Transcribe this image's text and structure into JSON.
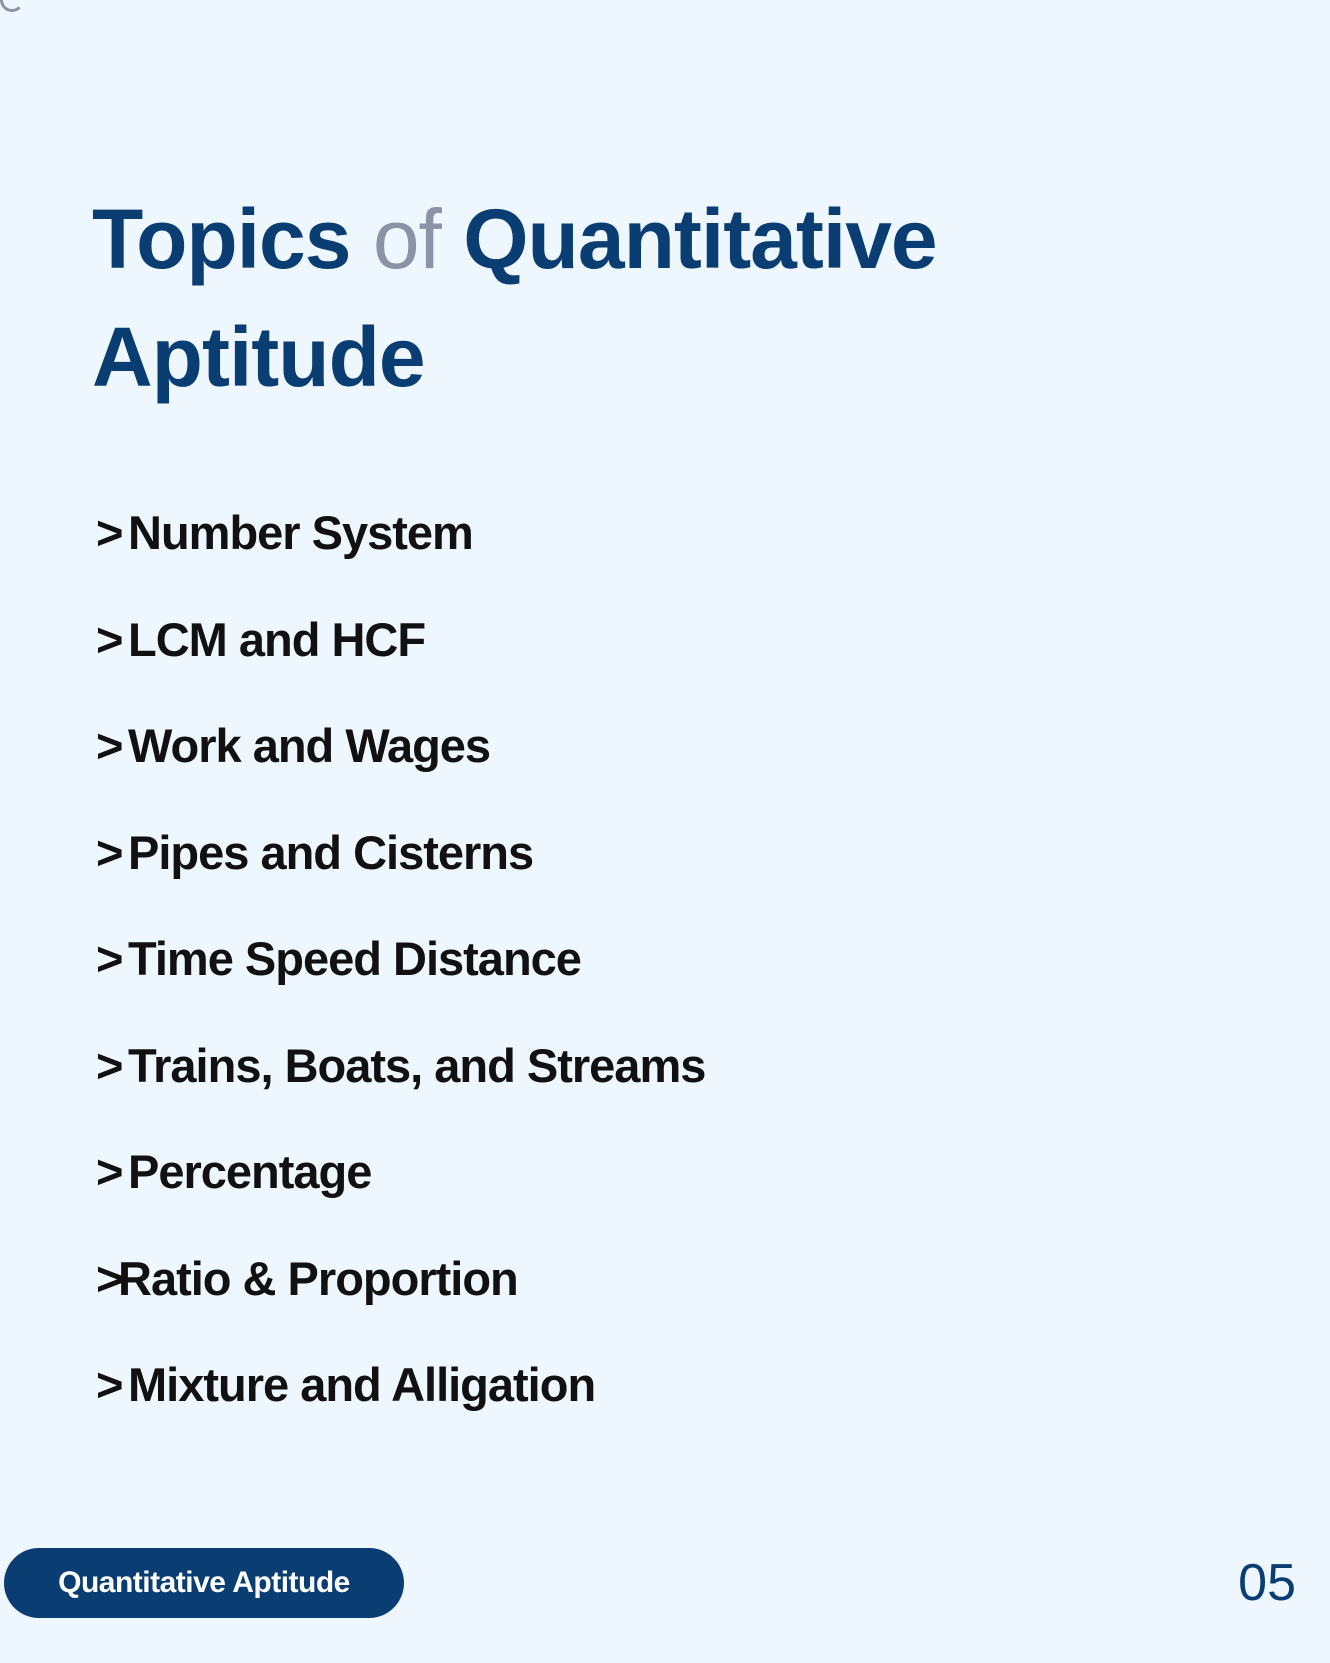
{
  "title": {
    "part1": "Topics",
    "part2": "of",
    "part3": "Quantitative",
    "part4": "Aptitude"
  },
  "topics": [
    {
      "marker": ">",
      "label": "Number System"
    },
    {
      "marker": ">",
      "label": "LCM and HCF"
    },
    {
      "marker": ">",
      "label": "Work and Wages"
    },
    {
      "marker": ">",
      "label": "Pipes and Cisterns"
    },
    {
      "marker": ">",
      "label": "Time Speed Distance"
    },
    {
      "marker": ">",
      "label": "Trains, Boats, and Streams"
    },
    {
      "marker": ">",
      "label": "Percentage"
    },
    {
      "marker": ">",
      "label": "Ratio & Proportion"
    },
    {
      "marker": ">",
      "label": "Mixture and Alligation"
    }
  ],
  "footer": {
    "pill_label": "Quantitative Aptitude",
    "page_number": "05"
  },
  "colors": {
    "background": "#eef6fe",
    "title": "#0a3e73",
    "title_muted": "#8a94a6",
    "text": "#111111",
    "pill_background": "#0a3e73",
    "pill_text": "#ffffff"
  }
}
